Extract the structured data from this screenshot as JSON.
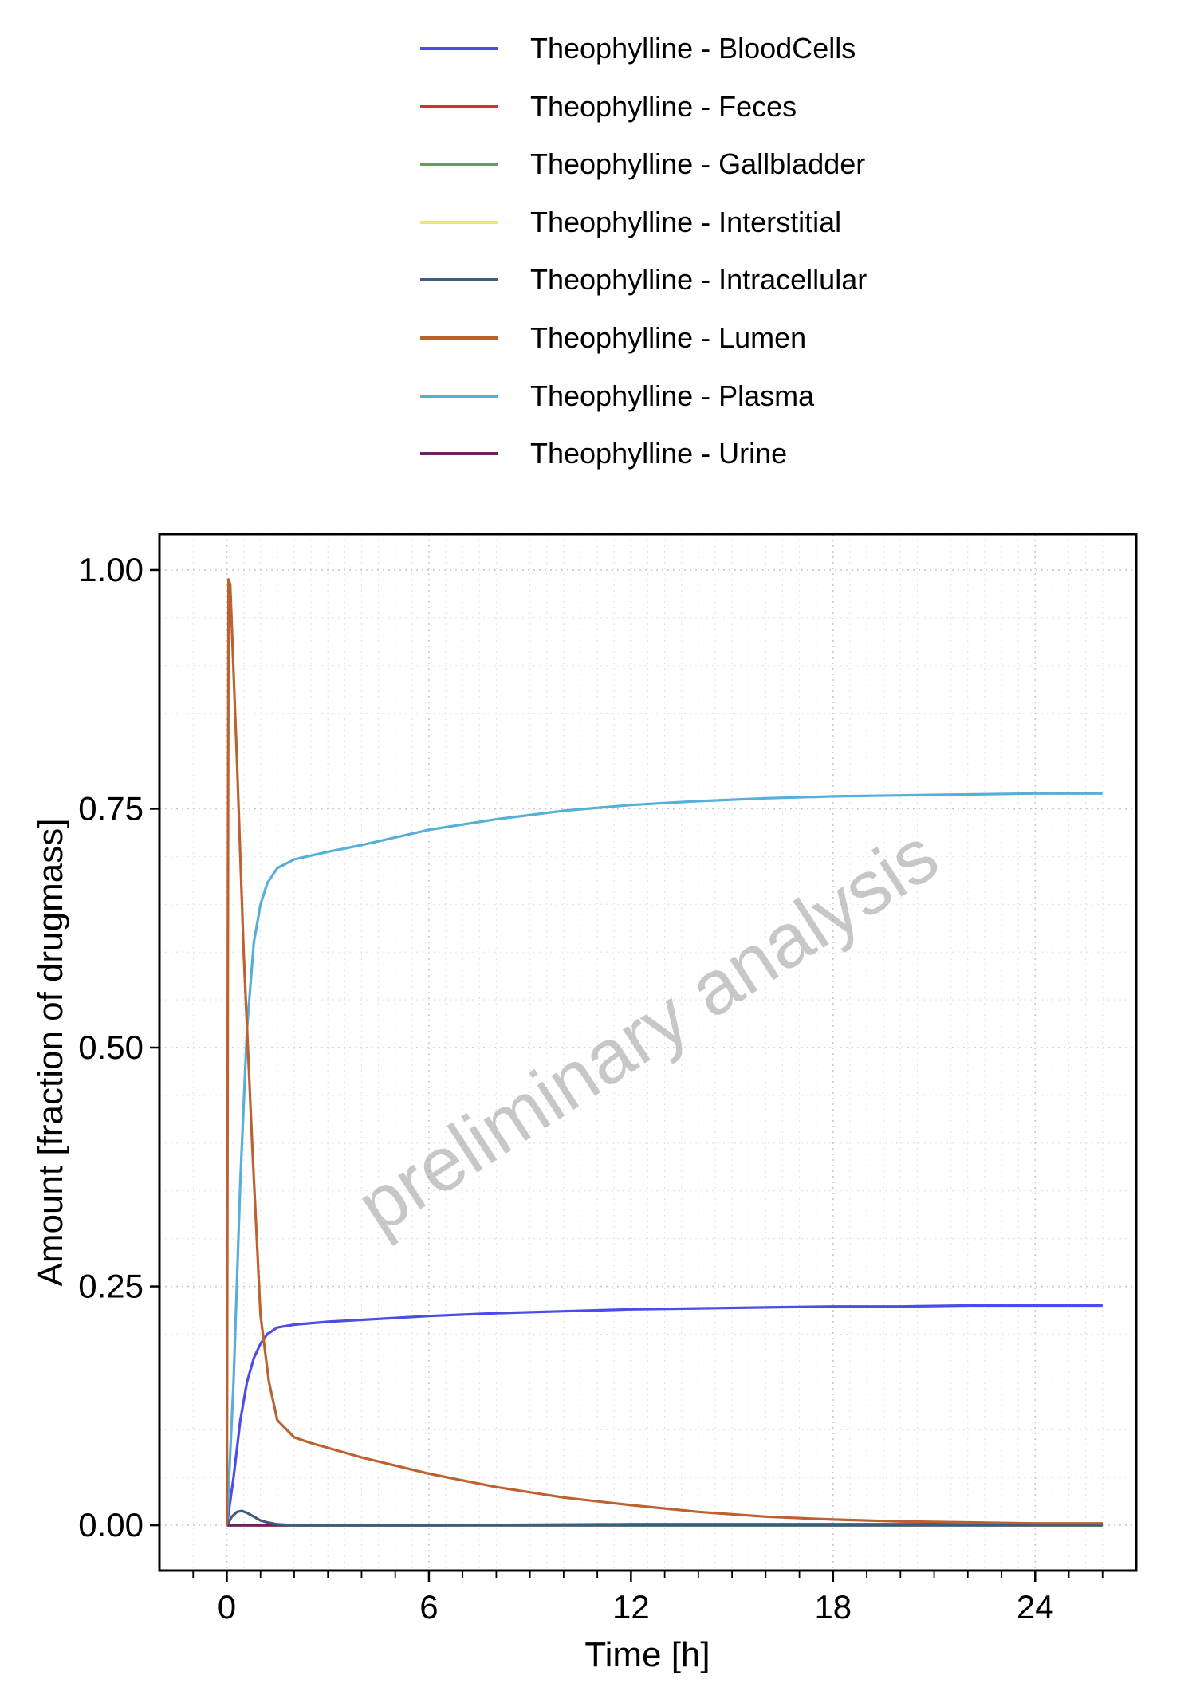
{
  "chart_data": {
    "type": "line",
    "title": "",
    "xlabel": "Time [h]",
    "ylabel": "Amount [fraction of drugmass]",
    "xlim": [
      -2.0,
      27.0
    ],
    "ylim": [
      -0.0475,
      1.0375
    ],
    "x_ticks": [
      0,
      6,
      12,
      18,
      24
    ],
    "x_tick_labels": [
      "0",
      "6",
      "12",
      "18",
      "24"
    ],
    "y_ticks": [
      0,
      0.25,
      0.5,
      0.75,
      1.0
    ],
    "y_tick_labels": [
      "0.00",
      "0.25",
      "0.50",
      "0.75",
      "1.00"
    ],
    "grid": true,
    "legend_position": "top",
    "watermark": "preliminary analysis",
    "series": [
      {
        "name": "Theophylline - BloodCells",
        "color": "#4c4ce6",
        "x": [
          0,
          0.2,
          0.4,
          0.6,
          0.8,
          1.0,
          1.2,
          1.5,
          2,
          3,
          4,
          6,
          8,
          10,
          12,
          14,
          16,
          18,
          20,
          22,
          24,
          26
        ],
        "y": [
          0,
          0.05,
          0.11,
          0.15,
          0.175,
          0.19,
          0.2,
          0.207,
          0.21,
          0.213,
          0.215,
          0.219,
          0.222,
          0.224,
          0.226,
          0.227,
          0.228,
          0.229,
          0.229,
          0.23,
          0.23,
          0.23
        ]
      },
      {
        "name": "Theophylline - Feces",
        "color": "#d62f2f",
        "x": [
          0,
          6,
          12,
          18,
          24,
          26
        ],
        "y": [
          0,
          0,
          0,
          0,
          0,
          0
        ]
      },
      {
        "name": "Theophylline - Gallbladder",
        "color": "#6b9a55",
        "x": [
          0,
          6,
          12,
          18,
          24,
          26
        ],
        "y": [
          0,
          0,
          0,
          0,
          0,
          0
        ]
      },
      {
        "name": "Theophylline - Interstitial",
        "color": "#efe38a",
        "x": [
          0,
          6,
          12,
          18,
          24,
          26
        ],
        "y": [
          0,
          0,
          0,
          0,
          0,
          0
        ]
      },
      {
        "name": "Theophylline - Intracellular",
        "color": "#3e5c7e",
        "x": [
          0,
          0.15,
          0.3,
          0.45,
          0.6,
          0.8,
          1.0,
          1.2,
          1.5,
          2,
          4,
          8,
          12,
          18,
          24,
          26
        ],
        "y": [
          0,
          0.009,
          0.014,
          0.015,
          0.013,
          0.009,
          0.005,
          0.003,
          0.001,
          0,
          0,
          0,
          0,
          0,
          0,
          0
        ]
      },
      {
        "name": "Theophylline - Lumen",
        "color": "#bb6230",
        "x": [
          0,
          0.05,
          0.1,
          0.3,
          0.5,
          0.75,
          1.0,
          1.25,
          1.5,
          2,
          2.5,
          3,
          4,
          6,
          8,
          10,
          12,
          14,
          16,
          18,
          20,
          22,
          24,
          26
        ],
        "y": [
          0,
          0.99,
          0.985,
          0.8,
          0.6,
          0.4,
          0.22,
          0.15,
          0.11,
          0.092,
          0.086,
          0.081,
          0.071,
          0.054,
          0.04,
          0.029,
          0.021,
          0.014,
          0.009,
          0.006,
          0.004,
          0.003,
          0.002,
          0.002
        ]
      },
      {
        "name": "Theophylline - Plasma",
        "color": "#56afd8",
        "x": [
          0,
          0.2,
          0.4,
          0.6,
          0.8,
          1.0,
          1.2,
          1.5,
          2,
          3,
          4,
          6,
          8,
          10,
          12,
          14,
          16,
          18,
          20,
          22,
          24,
          26
        ],
        "y": [
          0,
          0.15,
          0.36,
          0.52,
          0.61,
          0.65,
          0.672,
          0.688,
          0.697,
          0.705,
          0.712,
          0.728,
          0.739,
          0.748,
          0.754,
          0.758,
          0.761,
          0.763,
          0.764,
          0.765,
          0.766,
          0.766
        ]
      },
      {
        "name": "Theophylline - Urine",
        "color": "#6e2060",
        "x": [
          0,
          6,
          12,
          18,
          24,
          26
        ],
        "y": [
          0,
          0,
          0.001,
          0.001,
          0.001,
          0.001
        ]
      }
    ]
  }
}
